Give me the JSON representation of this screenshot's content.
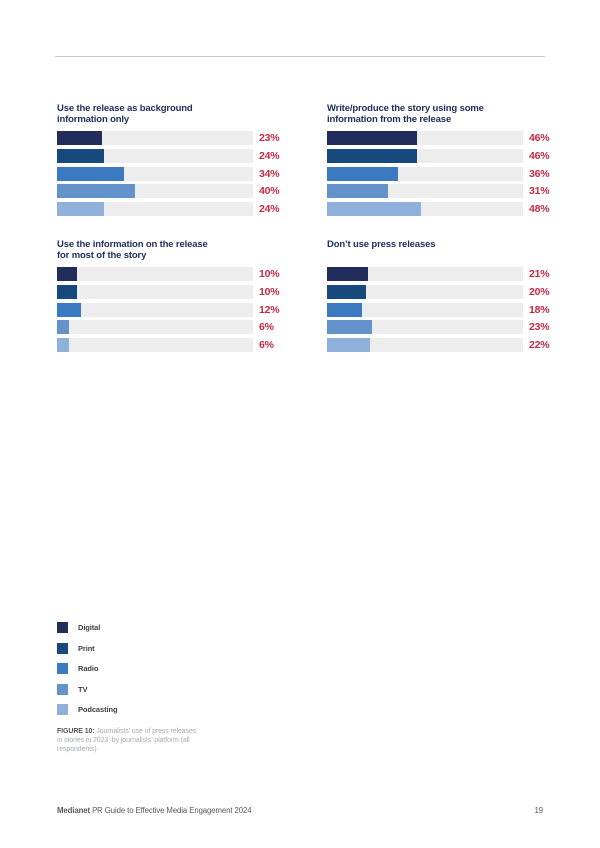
{
  "colors": {
    "series": [
      "#232d5b",
      "#17497c",
      "#3b79c0",
      "#6493cb",
      "#8fb0da"
    ],
    "title_navy": "#20305f",
    "value_red": "#c42a45",
    "bar_track": "#ededee",
    "divider": "#c9cacb",
    "legend_text": "#414042",
    "caption_gray": "#a9abae",
    "footer_gray": "#58595b"
  },
  "chart_data": [
    {
      "type": "bar",
      "orientation": "horizontal",
      "title": "Use the release as background information only",
      "title_lines": [
        "Use the release as background",
        "information only"
      ],
      "categories": [
        "Digital",
        "Print",
        "Radio",
        "TV",
        "Podcasting"
      ],
      "values": [
        23,
        24,
        34,
        40,
        24
      ],
      "value_suffix": "%",
      "xlim": [
        0,
        100
      ],
      "grid": false,
      "legend_position": "bottom-left-of-page"
    },
    {
      "type": "bar",
      "orientation": "horizontal",
      "title": "Write/produce the story using some information from the release",
      "title_lines": [
        "Write/produce the story using some",
        "information from the release"
      ],
      "categories": [
        "Digital",
        "Print",
        "Radio",
        "TV",
        "Podcasting"
      ],
      "values": [
        46,
        46,
        36,
        31,
        48
      ],
      "value_suffix": "%",
      "xlim": [
        0,
        100
      ],
      "grid": false
    },
    {
      "type": "bar",
      "orientation": "horizontal",
      "title": "Use the information on the release for most of the story",
      "title_lines": [
        "Use the information on the release",
        "for most of the story"
      ],
      "categories": [
        "Digital",
        "Print",
        "Radio",
        "TV",
        "Podcasting"
      ],
      "values": [
        10,
        10,
        12,
        6,
        6
      ],
      "value_suffix": "%",
      "xlim": [
        0,
        100
      ],
      "grid": false
    },
    {
      "type": "bar",
      "orientation": "horizontal",
      "title": "Don’t use press releases",
      "title_lines": [
        "Don’t use press releases"
      ],
      "categories": [
        "Digital",
        "Print",
        "Radio",
        "TV",
        "Podcasting"
      ],
      "values": [
        21,
        20,
        18,
        23,
        22
      ],
      "value_suffix": "%",
      "xlim": [
        0,
        100
      ],
      "grid": false
    }
  ],
  "legend": {
    "items": [
      {
        "label": "Digital",
        "color": "#232d5b"
      },
      {
        "label": "Print",
        "color": "#17497c"
      },
      {
        "label": "Radio",
        "color": "#3b79c0"
      },
      {
        "label": "TV",
        "color": "#6493cb"
      },
      {
        "label": "Podcasting",
        "color": "#8fb0da"
      }
    ]
  },
  "caption": {
    "label": "FIGURE 10:",
    "text": " Journalists’ use of press releases in stories in 2023, by journalists’ platform (all respondents)"
  },
  "footer": {
    "brand": "Medianet",
    "rest": " PR Guide to Effective Media Engagement 2024",
    "page_number": "19"
  }
}
